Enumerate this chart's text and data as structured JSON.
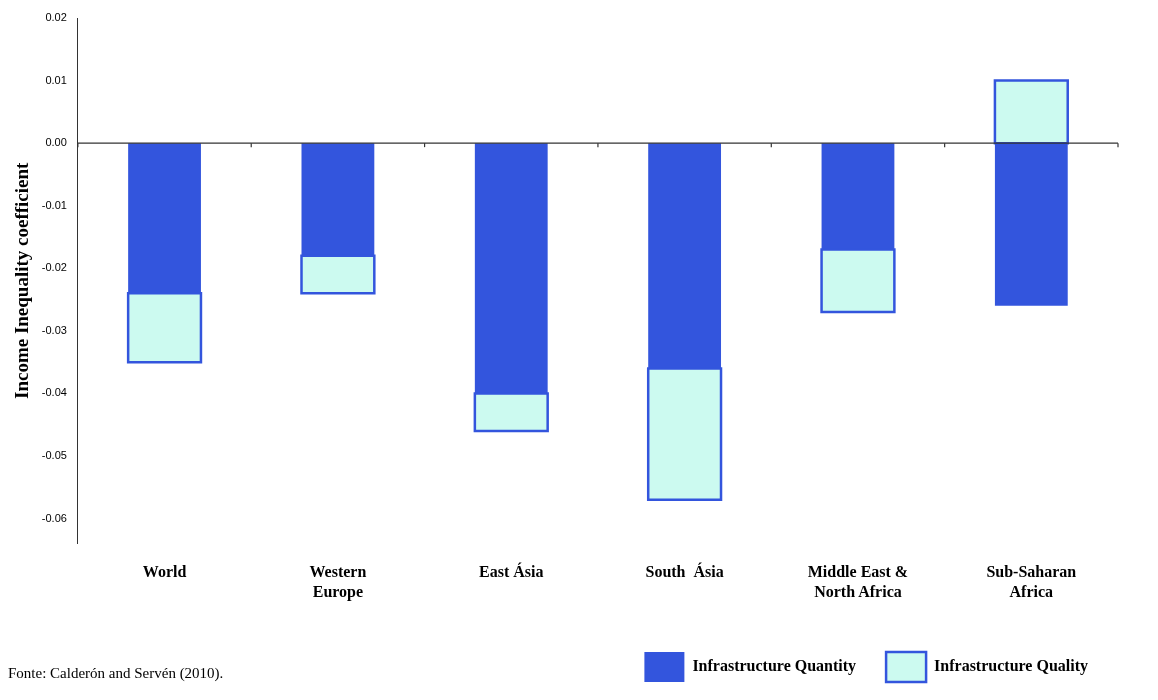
{
  "chart_data": {
    "type": "bar",
    "stacked": true,
    "ylabel": "Income Inequality coefficient",
    "categories": [
      "World",
      "Western Europe",
      "East Ásia",
      "South  Ásia",
      "Middle East & North Africa",
      "Sub-Saharan Africa"
    ],
    "series": [
      {
        "name": "Infrastructure Quantity",
        "color": "#3355dd",
        "values": [
          -0.024,
          -0.018,
          -0.04,
          -0.036,
          -0.017,
          -0.026
        ]
      },
      {
        "name": "Infrastructure Quality",
        "color": "#ccfaf0",
        "values": [
          -0.011,
          -0.006,
          -0.006,
          -0.021,
          -0.01,
          0.01
        ]
      }
    ],
    "ylim": [
      -0.064,
      0.02
    ],
    "yticks": [
      0.02,
      0.01,
      {
        "value": 0,
        "label": "0.00"
      },
      -0.01,
      -0.02,
      -0.03,
      -0.04,
      -0.05,
      -0.06
    ],
    "ref_lines": [
      {
        "axis": "y",
        "value": 0,
        "color": "#333333"
      }
    ],
    "grid": false,
    "legend": "bottom right",
    "annotations": [
      "Fonte: Calderón and Servén (2010)."
    ]
  }
}
